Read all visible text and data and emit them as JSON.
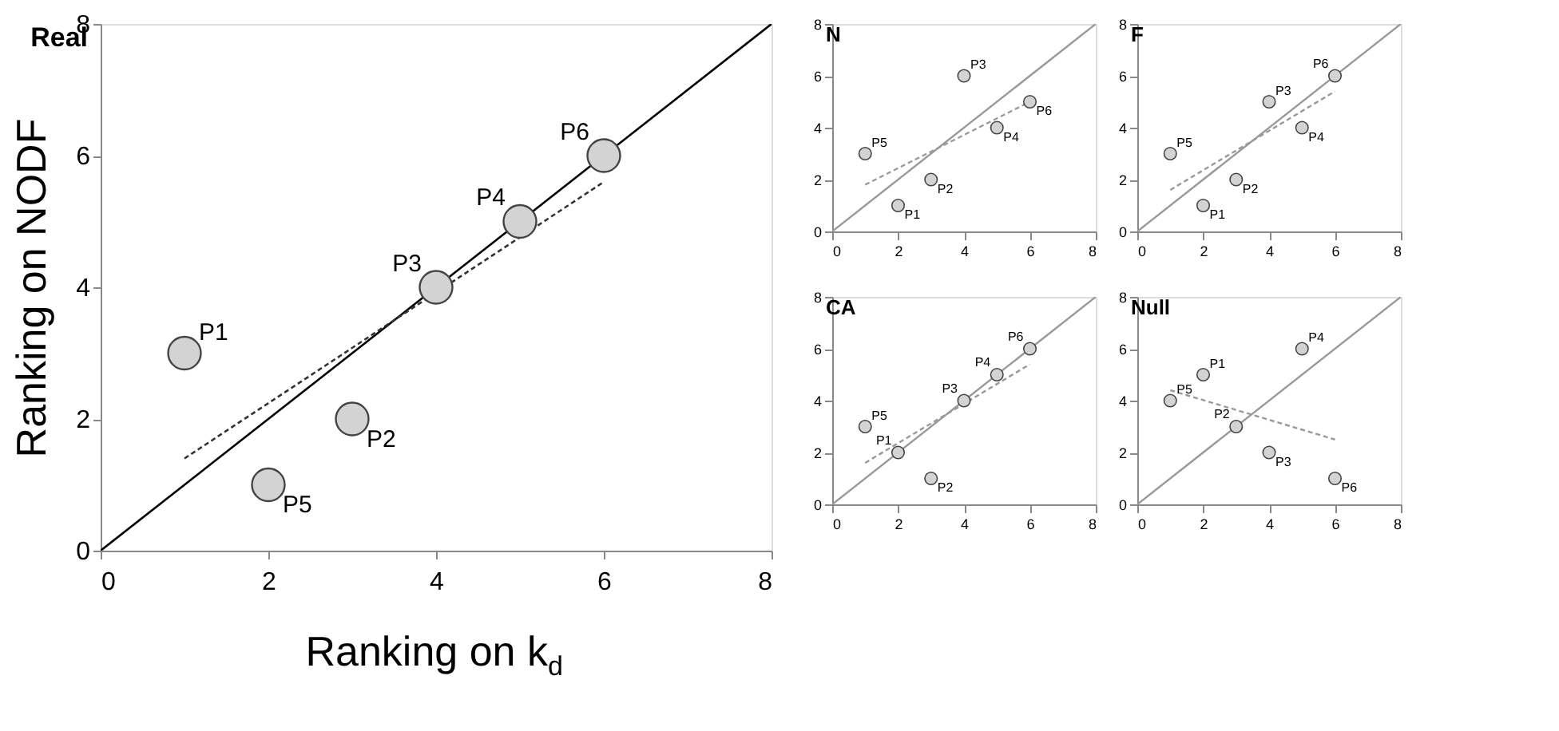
{
  "chart_data": [
    {
      "type": "scatter",
      "title": "Real",
      "xlabel": "Ranking on k$_{d}$",
      "ylabel": "Ranking on NODF",
      "x": [
        1,
        3,
        4,
        5,
        2,
        6
      ],
      "xlim": [
        0,
        8
      ],
      "ylim": [
        0,
        8
      ],
      "xticks": [
        0,
        2,
        4,
        6,
        8
      ],
      "yticks": [
        0,
        2,
        4,
        6,
        8
      ],
      "grid": false,
      "marker": "circle",
      "series": [
        {
          "type": "line",
          "color": "#000000",
          "x": [
            0,
            8
          ],
          "values": [
            0,
            8
          ],
          "line_style": "solid",
          "marker": "none"
        },
        {
          "type": "line",
          "color": "#333333",
          "x": [
            1,
            6
          ],
          "values": [
            1.4,
            5.6
          ],
          "line_style": "dashed",
          "marker": "none"
        },
        {
          "type": "scatter",
          "color": "#d3d3d3",
          "values": [
            3,
            2,
            4,
            5,
            1,
            6
          ]
        }
      ],
      "annotations": [
        {
          "text": "P1",
          "x": 1,
          "y": 3
        },
        {
          "text": "P2",
          "x": 3,
          "y": 2
        },
        {
          "text": "P3",
          "x": 4,
          "y": 4
        },
        {
          "text": "P4",
          "x": 5,
          "y": 5
        },
        {
          "text": "P5",
          "x": 2,
          "y": 1
        },
        {
          "text": "P6",
          "x": 6,
          "y": 6
        }
      ]
    },
    {
      "type": "scatter",
      "title": "N",
      "x": [
        2,
        3,
        4,
        5,
        1,
        6
      ],
      "xlim": [
        0,
        8
      ],
      "ylim": [
        0,
        8
      ],
      "xticks": [
        0,
        2,
        4,
        6,
        8
      ],
      "yticks": [
        0,
        2,
        4,
        6,
        8
      ],
      "grid": false,
      "marker": "circle",
      "series": [
        {
          "type": "line",
          "color": "#999999",
          "x": [
            0,
            8
          ],
          "values": [
            0,
            8
          ],
          "line_style": "solid",
          "marker": "none"
        },
        {
          "type": "line",
          "color": "#999999",
          "x": [
            1,
            6
          ],
          "values": [
            1.8,
            5.0
          ],
          "line_style": "dashed",
          "marker": "none"
        },
        {
          "type": "scatter",
          "color": "#d3d3d3",
          "values": [
            1,
            2,
            6,
            4,
            3,
            5
          ]
        }
      ],
      "annotations": [
        {
          "text": "P1",
          "x": 2,
          "y": 1
        },
        {
          "text": "P2",
          "x": 3,
          "y": 2
        },
        {
          "text": "P3",
          "x": 4,
          "y": 6
        },
        {
          "text": "P4",
          "x": 5,
          "y": 4
        },
        {
          "text": "P5",
          "x": 1,
          "y": 3
        },
        {
          "text": "P6",
          "x": 6,
          "y": 5
        }
      ]
    },
    {
      "type": "scatter",
      "title": "F",
      "x": [
        2,
        3,
        4,
        5,
        1,
        6
      ],
      "xlim": [
        0,
        8
      ],
      "ylim": [
        0,
        8
      ],
      "xticks": [
        0,
        2,
        4,
        6,
        8
      ],
      "yticks": [
        0,
        2,
        4,
        6,
        8
      ],
      "grid": false,
      "marker": "circle",
      "series": [
        {
          "type": "line",
          "color": "#999999",
          "x": [
            0,
            8
          ],
          "values": [
            0,
            8
          ],
          "line_style": "solid",
          "marker": "none"
        },
        {
          "type": "line",
          "color": "#999999",
          "x": [
            1,
            6
          ],
          "values": [
            1.6,
            5.4
          ],
          "line_style": "dashed",
          "marker": "none"
        },
        {
          "type": "scatter",
          "color": "#d3d3d3",
          "values": [
            1,
            2,
            5,
            4,
            3,
            6
          ]
        }
      ],
      "annotations": [
        {
          "text": "P1",
          "x": 2,
          "y": 1
        },
        {
          "text": "P2",
          "x": 3,
          "y": 2
        },
        {
          "text": "P3",
          "x": 4,
          "y": 5
        },
        {
          "text": "P4",
          "x": 5,
          "y": 4
        },
        {
          "text": "P5",
          "x": 1,
          "y": 3
        },
        {
          "text": "P6",
          "x": 6,
          "y": 6
        }
      ]
    },
    {
      "type": "scatter",
      "title": "CA",
      "x": [
        2,
        3,
        4,
        5,
        1,
        6
      ],
      "xlim": [
        0,
        8
      ],
      "ylim": [
        0,
        8
      ],
      "xticks": [
        0,
        2,
        4,
        6,
        8
      ],
      "yticks": [
        0,
        2,
        4,
        6,
        8
      ],
      "grid": false,
      "marker": "circle",
      "series": [
        {
          "type": "line",
          "color": "#999999",
          "x": [
            0,
            8
          ],
          "values": [
            0,
            8
          ],
          "line_style": "solid",
          "marker": "none"
        },
        {
          "type": "line",
          "color": "#999999",
          "x": [
            1,
            6
          ],
          "values": [
            1.6,
            5.4
          ],
          "line_style": "dashed",
          "marker": "none"
        },
        {
          "type": "scatter",
          "color": "#d3d3d3",
          "values": [
            2,
            1,
            4,
            5,
            3,
            6
          ]
        }
      ],
      "annotations": [
        {
          "text": "P1",
          "x": 2,
          "y": 2
        },
        {
          "text": "P2",
          "x": 3,
          "y": 1
        },
        {
          "text": "P3",
          "x": 4,
          "y": 4
        },
        {
          "text": "P4",
          "x": 5,
          "y": 5
        },
        {
          "text": "P5",
          "x": 1,
          "y": 3
        },
        {
          "text": "P6",
          "x": 6,
          "y": 6
        }
      ]
    },
    {
      "type": "scatter",
      "title": "Null",
      "x": [
        2,
        3,
        4,
        5,
        1,
        6
      ],
      "xlim": [
        0,
        8
      ],
      "ylim": [
        0,
        8
      ],
      "xticks": [
        0,
        2,
        4,
        6,
        8
      ],
      "yticks": [
        0,
        2,
        4,
        6,
        8
      ],
      "grid": false,
      "marker": "circle",
      "series": [
        {
          "type": "line",
          "color": "#999999",
          "x": [
            0,
            8
          ],
          "values": [
            0,
            8
          ],
          "line_style": "solid",
          "marker": "none"
        },
        {
          "type": "line",
          "color": "#999999",
          "x": [
            1,
            6
          ],
          "values": [
            4.4,
            2.5
          ],
          "line_style": "dashed",
          "marker": "none"
        },
        {
          "type": "scatter",
          "color": "#d3d3d3",
          "values": [
            5,
            3,
            2,
            6,
            4,
            1
          ]
        }
      ],
      "annotations": [
        {
          "text": "P1",
          "x": 2,
          "y": 5
        },
        {
          "text": "P2",
          "x": 3,
          "y": 3
        },
        {
          "text": "P3",
          "x": 4,
          "y": 2
        },
        {
          "text": "P4",
          "x": 5,
          "y": 6
        },
        {
          "text": "P5",
          "x": 1,
          "y": 4
        },
        {
          "text": "P6",
          "x": 6,
          "y": 1
        }
      ]
    }
  ]
}
